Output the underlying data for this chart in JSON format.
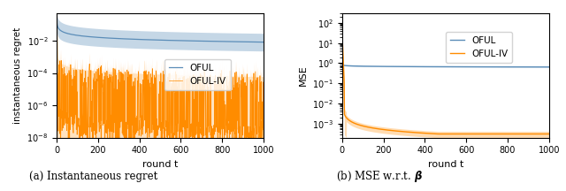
{
  "title_a": "(a) Instantaneous regret",
  "title_b": "(b) MSE w.r.t. $\\boldsymbol{\\beta}$",
  "xlabel": "round t",
  "ylabel_a": "instantaneous regret",
  "ylabel_b": "MSE",
  "xlim": [
    0,
    1000
  ],
  "oful_color": "#5B8DB8",
  "oful_iv_color": "#FF8C00",
  "n_rounds": 1000,
  "seed": 42,
  "legend_labels": [
    "OFUL",
    "OFUL-IV"
  ],
  "figsize": [
    6.4,
    2.16
  ],
  "dpi": 100
}
